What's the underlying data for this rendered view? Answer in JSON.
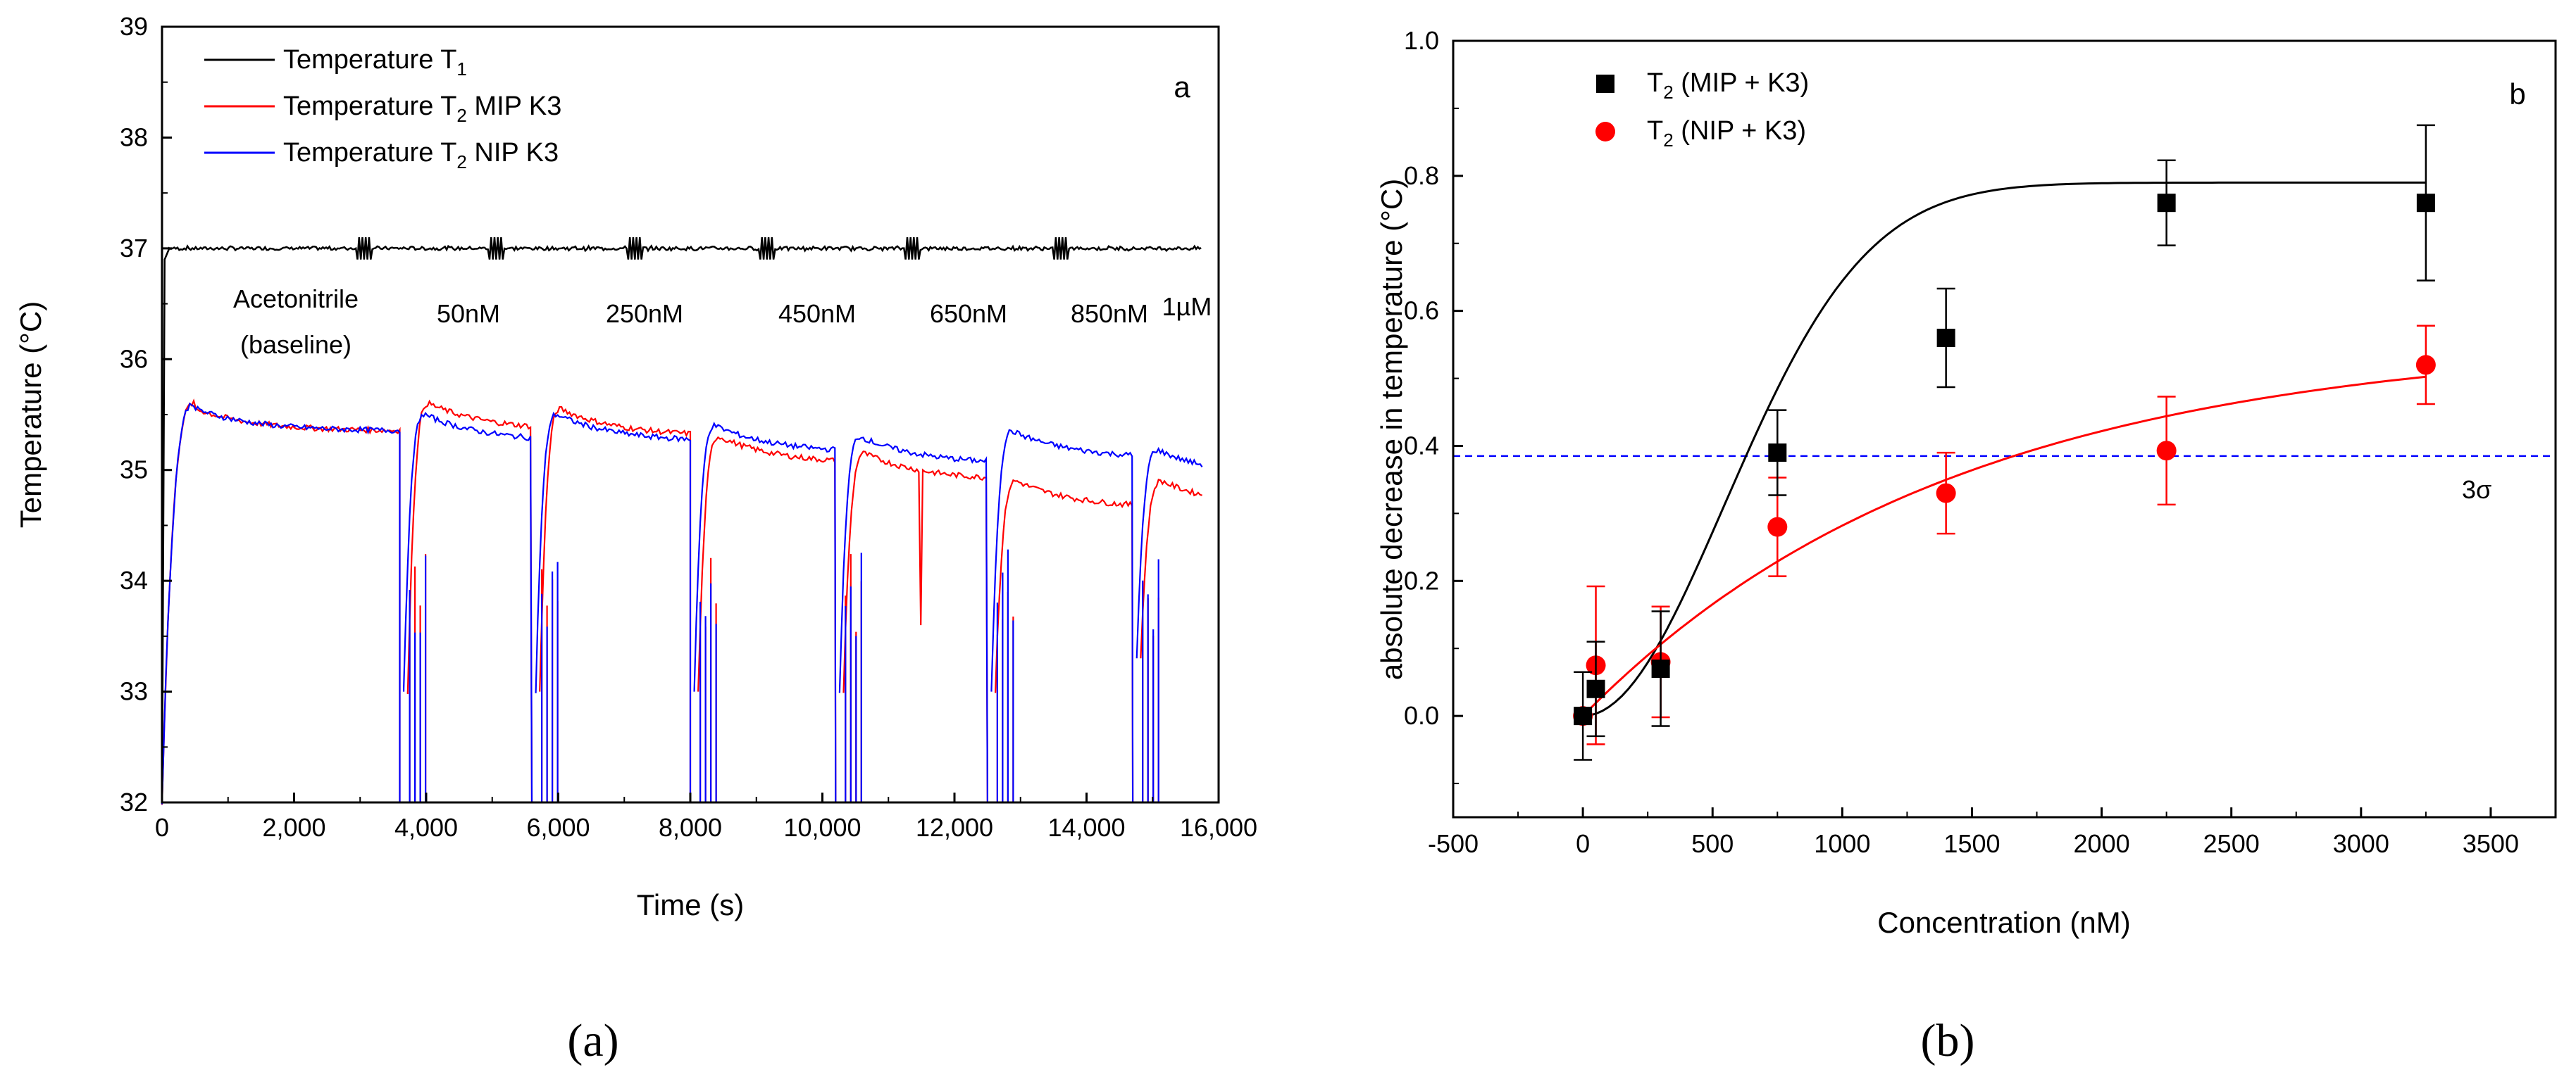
{
  "captions": {
    "a": "(a)",
    "b": "(b)"
  },
  "chart_data": [
    {
      "type": "line",
      "panel_label": "a",
      "xlabel": "Time (s)",
      "ylabel": "Temperature (°C)",
      "xlim": [
        0,
        16000
      ],
      "ylim": [
        32,
        39
      ],
      "xticks": [
        "0",
        "2,000",
        "4,000",
        "6,000",
        "8,000",
        "10,000",
        "12,000",
        "14,000",
        "16,000"
      ],
      "yticks": [
        "32",
        "33",
        "34",
        "35",
        "36",
        "37",
        "38",
        "39"
      ],
      "legend_position": "top-left",
      "series": [
        {
          "name": "Temperature T1",
          "legend": {
            "main": "Temperature T",
            "sub": "1",
            "tail": ""
          },
          "color": "#000000",
          "plateau": 37.0
        },
        {
          "name": "Temperature T2 MIP K3",
          "legend": {
            "main": "Temperature T",
            "sub": "2",
            "tail": " MIP K3"
          },
          "color": "#ff0000",
          "segment_levels": [
            35.35,
            35.35,
            35.3,
            35.05,
            34.9,
            34.65
          ]
        },
        {
          "name": "Temperature T2 NIP K3",
          "legend": {
            "main": "Temperature T",
            "sub": "2",
            "tail": " NIP K3"
          },
          "color": "#0000ff",
          "segment_levels": [
            35.35,
            35.25,
            35.25,
            35.15,
            35.05,
            35.1
          ]
        }
      ],
      "segment_boundaries_s": [
        3600,
        5600,
        8000,
        10200,
        12500,
        14700,
        15700
      ],
      "annotations": [
        "Acetonitrile",
        "(baseline)",
        "50nM",
        "250nM",
        "450nM",
        "650nM",
        "850nM",
        "1µM"
      ]
    },
    {
      "type": "scatter",
      "panel_label": "b",
      "xlabel": "Concentration (nM)",
      "ylabel": "absolute decrease in temperature (°C)",
      "xlim": [
        -500,
        3750
      ],
      "ylim": [
        -0.15,
        1.0
      ],
      "xticks": [
        "-500",
        "0",
        "500",
        "1000",
        "1500",
        "2000",
        "2500",
        "3000",
        "3500"
      ],
      "yticks": [
        "0.0",
        "0.2",
        "0.4",
        "0.6",
        "0.8",
        "1.0"
      ],
      "legend_position": "top-left",
      "series": [
        {
          "name": "T2 (MIP + K3)",
          "legend": {
            "main": "T",
            "sub": "2",
            "tail": " (MIP + K3)"
          },
          "color": "#000000",
          "marker": "square",
          "x": [
            0,
            50,
            300,
            750,
            1400,
            2250,
            3250
          ],
          "y": [
            0.0,
            0.04,
            0.07,
            0.39,
            0.56,
            0.76,
            0.76
          ],
          "err": [
            0.065,
            0.07,
            0.085,
            0.063,
            0.073,
            0.063,
            0.115
          ],
          "fit": {
            "a": 0.79,
            "k": 0.0013,
            "n": 2
          }
        },
        {
          "name": "T2 (NIP + K3)",
          "legend": {
            "main": "T",
            "sub": "2",
            "tail": " (NIP + K3)"
          },
          "color": "#ff0000",
          "marker": "circle",
          "x": [
            0,
            50,
            300,
            750,
            1400,
            2250,
            3250
          ],
          "y": [
            0.0,
            0.075,
            0.08,
            0.28,
            0.33,
            0.393,
            0.52
          ],
          "err": [
            0.0,
            0.117,
            0.082,
            0.073,
            0.06,
            0.08,
            0.058
          ],
          "fit": {
            "a": 0.56,
            "k": 0.0007,
            "n": 1
          }
        }
      ],
      "threshold": {
        "label": "3σ",
        "value": 0.385,
        "color": "#0000ff"
      }
    }
  ]
}
